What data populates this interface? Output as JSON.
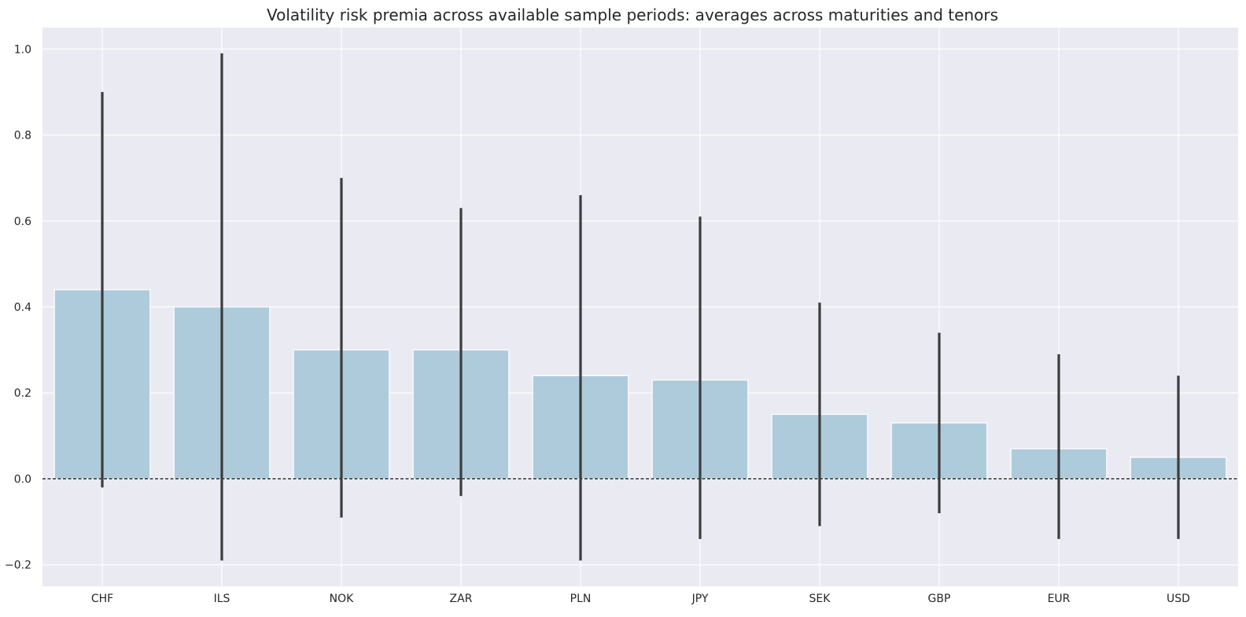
{
  "chart_data": {
    "type": "bar",
    "title": "Volatility risk premia across available sample periods: averages across maturities and tenors",
    "xlabel": "",
    "ylabel": "",
    "categories": [
      "CHF",
      "ILS",
      "NOK",
      "ZAR",
      "PLN",
      "JPY",
      "SEK",
      "GBP",
      "EUR",
      "USD"
    ],
    "values": [
      0.44,
      0.4,
      0.3,
      0.3,
      0.24,
      0.23,
      0.15,
      0.13,
      0.07,
      0.05
    ],
    "error_low": [
      -0.02,
      -0.19,
      -0.09,
      -0.04,
      -0.19,
      -0.14,
      -0.11,
      -0.08,
      -0.14,
      -0.14
    ],
    "error_high": [
      0.9,
      0.99,
      0.7,
      0.63,
      0.66,
      0.61,
      0.41,
      0.34,
      0.29,
      0.24
    ],
    "ylim": [
      -0.25,
      1.05
    ],
    "yticks": [
      -0.2,
      0.0,
      0.2,
      0.4,
      0.6,
      0.8,
      1.0
    ],
    "ytick_labels": [
      "−0.2",
      "0.0",
      "0.2",
      "0.4",
      "0.6",
      "0.8",
      "1.0"
    ],
    "reference_line": 0,
    "grid": true,
    "legend": "none",
    "colors": {
      "bar": "#aecbdb",
      "error_bar": "#3c3c3c",
      "background": "#eaeaf2",
      "grid": "#ffffff",
      "zero_line": "#000000"
    }
  }
}
